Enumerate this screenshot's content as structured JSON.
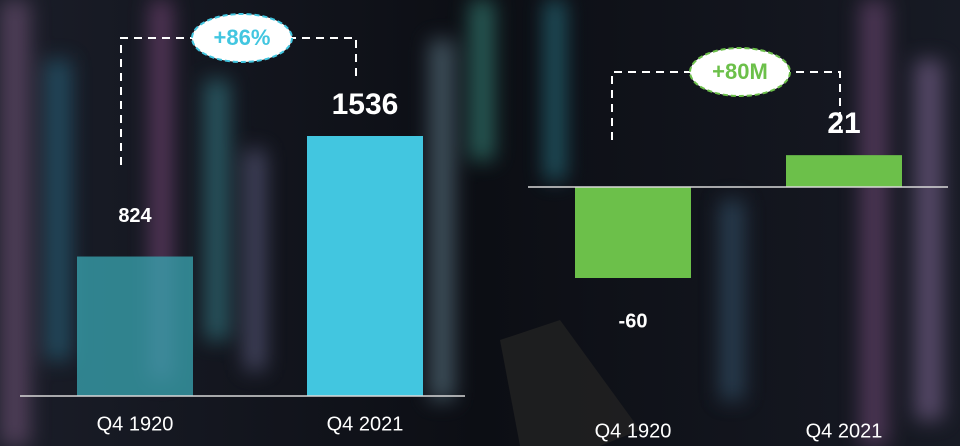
{
  "chart_data": [
    {
      "type": "bar",
      "categories": [
        "Q4 1920",
        "Q4 2021"
      ],
      "values": [
        824,
        1536
      ],
      "colors": [
        "#3aa7b3",
        "#42c6e0"
      ],
      "annotation": "+86%"
    },
    {
      "type": "bar",
      "categories": [
        "Q4 1920",
        "Q4 2021"
      ],
      "values": [
        -60,
        21
      ],
      "colors": [
        "#6cc04a",
        "#6cc04a"
      ],
      "annotation": "+80M"
    }
  ]
}
